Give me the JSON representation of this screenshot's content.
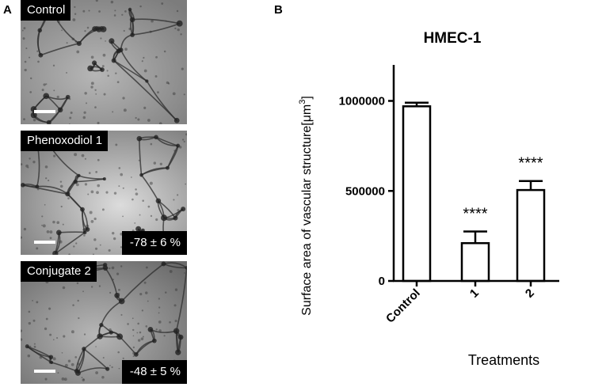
{
  "panels": {
    "a": {
      "letter": "A",
      "images": [
        {
          "label": "Control",
          "percent": ""
        },
        {
          "label": "Phenoxodiol 1",
          "percent": "-78 ± 6 %"
        },
        {
          "label": "Conjugate 2",
          "percent": "-48 ± 5 %"
        }
      ]
    },
    "b": {
      "letter": "B"
    }
  },
  "chart_data": {
    "type": "bar",
    "title": "HMEC-1",
    "xlabel": "Treatments",
    "ylabel": "Surface area of vascular structure[μm",
    "ylabel_sup": "3",
    "ylabel_end": "]",
    "categories": [
      "Control",
      "1",
      "2"
    ],
    "values": [
      970000,
      210000,
      505000
    ],
    "errors": [
      20000,
      65000,
      50000
    ],
    "significance": [
      "",
      "****",
      "****"
    ],
    "ylim": [
      0,
      1200000
    ],
    "yticks": [
      0,
      500000,
      1000000
    ],
    "ytick_labels": [
      "0",
      "500000",
      "1000000"
    ],
    "bar_fill": "#ffffff",
    "bar_stroke": "#000000",
    "grid": false,
    "legend": "none"
  }
}
